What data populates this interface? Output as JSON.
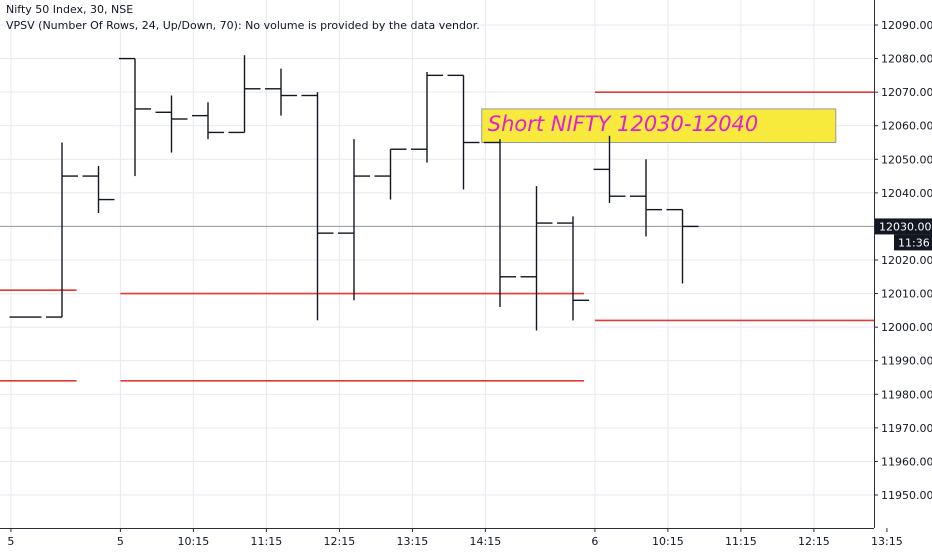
{
  "legend": {
    "symbol_line": "Nifty 50 Index, 30, NSE",
    "indicator_line": "VPSV (Number Of Rows, 24, Up/Down, 70): No volume is provided by the data vendor."
  },
  "colors": {
    "background": "#ffffff",
    "grid": "#e6e9ef",
    "bar": "#131722",
    "level_line": "#e53935",
    "annotation_fill": "#f8ea3c",
    "annotation_text": "#e020d8",
    "price_tag_bg": "#131722",
    "price_tag_text": "#ffffff",
    "crosshair": "#9598a1"
  },
  "chart_data": {
    "type": "ohlc",
    "symbol": "Nifty 50 Index",
    "interval": "30",
    "exchange": "NSE",
    "ylim": [
      11945,
      12098
    ],
    "y_ticks": [
      11950,
      11960,
      11970,
      11980,
      11990,
      12000,
      12010,
      12020,
      12030,
      12040,
      12050,
      12060,
      12070,
      12080,
      12090
    ],
    "y_tick_labels": [
      "11950.00",
      "11960.00",
      "11970.00",
      "11980.00",
      "11990.00",
      "12000.00",
      "12010.00",
      "12020.00",
      "12030.00",
      "12040.00",
      "12050.00",
      "12060.00",
      "12070.00",
      "12080.00",
      "12090.00"
    ],
    "x_tick_labels": [
      {
        "bar": -0.4,
        "label": "5"
      },
      {
        "bar": 2.6,
        "label": "5"
      },
      {
        "bar": 4.6,
        "label": "10:15"
      },
      {
        "bar": 6.6,
        "label": "11:15"
      },
      {
        "bar": 8.6,
        "label": "12:15"
      },
      {
        "bar": 10.6,
        "label": "13:15"
      },
      {
        "bar": 12.6,
        "label": "14:15"
      },
      {
        "bar": 15.6,
        "label": "6"
      },
      {
        "bar": 17.6,
        "label": "10:15"
      },
      {
        "bar": 19.6,
        "label": "11:15"
      },
      {
        "bar": 21.6,
        "label": "12:15"
      },
      {
        "bar": 23.6,
        "label": "13:15"
      }
    ],
    "bars": [
      {
        "o": 12003,
        "h": 12003,
        "l": 12003,
        "c": 12003
      },
      {
        "o": 12003,
        "h": 12055,
        "l": 12003,
        "c": 12045
      },
      {
        "o": 12045,
        "h": 12048,
        "l": 12034,
        "c": 12038
      },
      {
        "o": 12080,
        "h": 12080,
        "l": 12045,
        "c": 12065
      },
      {
        "o": 12064,
        "h": 12069,
        "l": 12052,
        "c": 12062
      },
      {
        "o": 12063,
        "h": 12067,
        "l": 12056,
        "c": 12058
      },
      {
        "o": 12058,
        "h": 12081,
        "l": 12058,
        "c": 12071
      },
      {
        "o": 12071,
        "h": 12077,
        "l": 12063,
        "c": 12069
      },
      {
        "o": 12069,
        "h": 12070,
        "l": 12002,
        "c": 12028
      },
      {
        "o": 12028,
        "h": 12056,
        "l": 12008,
        "c": 12045
      },
      {
        "o": 12045,
        "h": 12053,
        "l": 12038,
        "c": 12053
      },
      {
        "o": 12053,
        "h": 12076,
        "l": 12049,
        "c": 12075
      },
      {
        "o": 12075,
        "h": 12075,
        "l": 12041,
        "c": 12055
      },
      {
        "o": 12055,
        "h": 12056,
        "l": 12006,
        "c": 12015
      },
      {
        "o": 12015,
        "h": 12042,
        "l": 11999,
        "c": 12031
      },
      {
        "o": 12031,
        "h": 12033,
        "l": 12002,
        "c": 12008
      },
      {
        "o": 12047,
        "h": 12057,
        "l": 12037,
        "c": 12039
      },
      {
        "o": 12039,
        "h": 12050,
        "l": 12027,
        "c": 12035
      },
      {
        "o": 12035,
        "h": 12035,
        "l": 12013,
        "c": 12030
      }
    ],
    "levels": [
      {
        "price": 12011,
        "from_bar": -1.5,
        "to_bar": 1.4
      },
      {
        "price": 12010,
        "from_bar": 2.6,
        "to_bar": 15.3
      },
      {
        "price": 11984,
        "from_bar": -1.5,
        "to_bar": 1.4
      },
      {
        "price": 11984,
        "from_bar": 2.6,
        "to_bar": 15.3
      },
      {
        "price": 12070,
        "from_bar": 15.6,
        "to_bar": 26
      },
      {
        "price": 12002,
        "from_bar": 15.6,
        "to_bar": 26
      }
    ],
    "annotation": {
      "text": "Short NIFTY 12030-12040",
      "price_top": 12065,
      "price_bottom": 12055,
      "from_bar": 12.5,
      "to_bar": 22.2
    },
    "last_price": {
      "value": 12030,
      "label": "12030.00",
      "countdown": "11:36"
    },
    "grid": true
  }
}
